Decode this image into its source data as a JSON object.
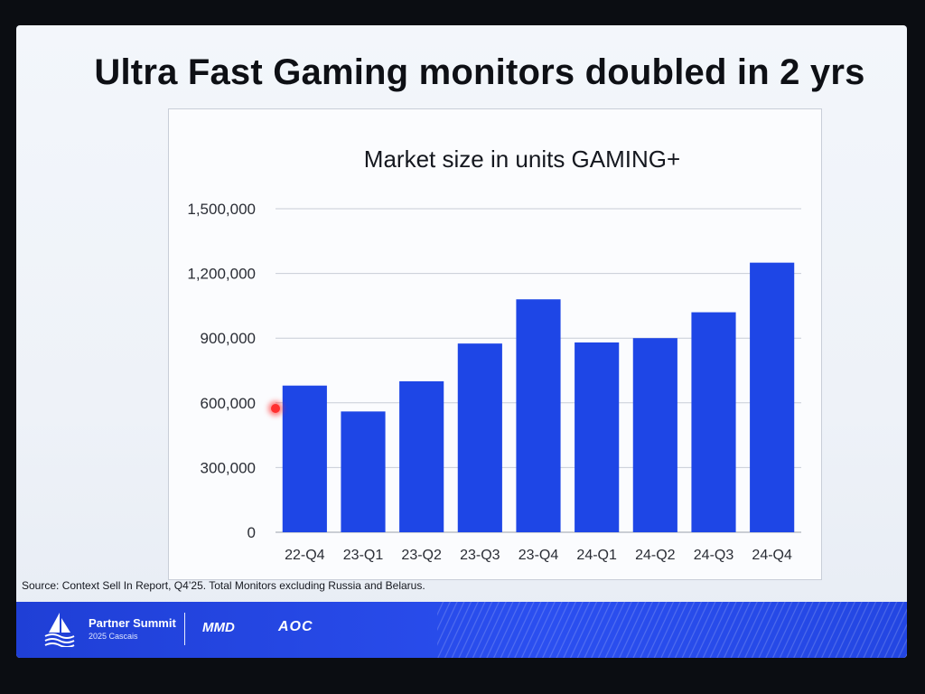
{
  "slide": {
    "title": "Ultra Fast Gaming monitors doubled in 2 yrs",
    "source_note": "Source: Context Sell In Report, Q4’25. Total Monitors excluding Russia and Belarus."
  },
  "footer": {
    "event_name": "Partner Summit",
    "event_sub": "2025 Cascais",
    "brand_mmd": "MMD",
    "brand_aoc": "AOC",
    "bar_color": "#2346e2"
  },
  "chart_data": {
    "type": "bar",
    "title": "Market size in units GAMING+",
    "categories": [
      "22-Q4",
      "23-Q1",
      "23-Q2",
      "23-Q3",
      "23-Q4",
      "24-Q1",
      "24-Q2",
      "24-Q3",
      "24-Q4"
    ],
    "values": [
      680000,
      560000,
      700000,
      875000,
      1080000,
      880000,
      900000,
      1020000,
      1250000
    ],
    "ylim": [
      0,
      1500000
    ],
    "yticks": [
      0,
      300000,
      600000,
      900000,
      1200000,
      1500000
    ],
    "ytick_labels": [
      "0",
      "300,000",
      "600,000",
      "900,000",
      "1,200,000",
      "1,500,000"
    ],
    "bar_color": "#1e46e6",
    "grid": true
  }
}
